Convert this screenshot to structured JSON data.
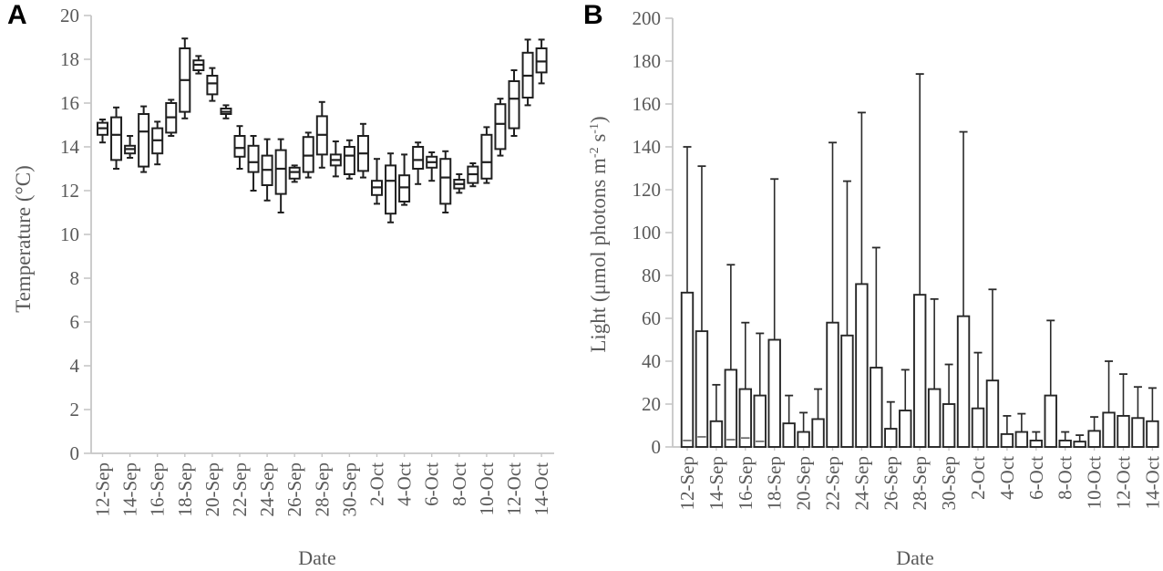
{
  "figure": {
    "panel_a_letter": "A",
    "panel_b_letter": "B"
  },
  "colors": {
    "box_outline": "#1f1f1f",
    "bar_outline": "#262626",
    "bar_fill": "#ffffff",
    "error_bar": "#2a2a2a",
    "axis_line": "#c6c6c6",
    "tick_text": "#595959",
    "inner_mark": "#3c3c3c"
  },
  "chart_data": [
    {
      "type": "boxplot",
      "panel": "A",
      "xlabel": "Date",
      "ylabel": "Temperature (°C)",
      "ylim": [
        0,
        20
      ],
      "ytick_step": 2,
      "grid": false,
      "x_tick_labels": [
        "12-Sep",
        "14-Sep",
        "16-Sep",
        "18-Sep",
        "20-Sep",
        "22-Sep",
        "24-Sep",
        "26-Sep",
        "28-Sep",
        "30-Sep",
        "2-Oct",
        "4-Oct",
        "6-Oct",
        "8-Oct",
        "10-Oct",
        "12-Oct",
        "14-Oct"
      ],
      "note": "one box per day, 12-Sep through 14-Oct; values = [whisker_low, q1, median, q3, whisker_high] in °C",
      "boxes": [
        [
          14.2,
          14.55,
          14.85,
          15.1,
          15.25
        ],
        [
          13.0,
          13.4,
          14.55,
          15.35,
          15.8
        ],
        [
          13.5,
          13.7,
          13.9,
          14.05,
          14.5
        ],
        [
          12.85,
          13.1,
          14.7,
          15.5,
          15.85
        ],
        [
          13.2,
          13.7,
          14.3,
          14.85,
          15.15
        ],
        [
          14.5,
          14.65,
          15.35,
          16.0,
          16.15
        ],
        [
          15.3,
          15.6,
          17.05,
          18.5,
          18.95
        ],
        [
          17.35,
          17.5,
          17.75,
          17.95,
          18.15
        ],
        [
          16.1,
          16.4,
          16.9,
          17.25,
          17.6
        ],
        [
          15.3,
          15.5,
          15.6,
          15.75,
          15.9
        ],
        [
          13.0,
          13.55,
          13.95,
          14.5,
          14.95
        ],
        [
          12.0,
          12.85,
          13.3,
          14.05,
          14.5
        ],
        [
          11.55,
          12.25,
          12.95,
          13.6,
          14.35
        ],
        [
          11.0,
          11.85,
          13.0,
          13.85,
          14.35
        ],
        [
          12.4,
          12.55,
          12.85,
          13.05,
          13.15
        ],
        [
          12.6,
          12.85,
          13.6,
          14.45,
          14.65
        ],
        [
          13.05,
          13.65,
          14.55,
          15.4,
          16.05
        ],
        [
          12.65,
          13.15,
          13.4,
          13.65,
          14.25
        ],
        [
          12.55,
          12.75,
          13.6,
          14.0,
          14.3
        ],
        [
          12.6,
          12.9,
          13.7,
          14.5,
          15.05
        ],
        [
          11.4,
          11.8,
          12.15,
          12.45,
          13.45
        ],
        [
          10.55,
          10.95,
          12.45,
          13.15,
          13.7
        ],
        [
          11.35,
          11.5,
          12.15,
          12.7,
          13.65
        ],
        [
          12.3,
          13.0,
          13.4,
          14.0,
          14.2
        ],
        [
          12.45,
          13.05,
          13.3,
          13.55,
          13.75
        ],
        [
          11.0,
          11.4,
          12.6,
          13.45,
          13.8
        ],
        [
          11.9,
          12.1,
          12.3,
          12.5,
          12.75
        ],
        [
          12.2,
          12.35,
          12.75,
          13.1,
          13.25
        ],
        [
          12.35,
          12.55,
          13.3,
          14.55,
          14.9
        ],
        [
          13.6,
          13.9,
          15.05,
          15.95,
          16.2
        ],
        [
          14.5,
          14.85,
          16.2,
          17.0,
          17.5
        ],
        [
          15.9,
          16.25,
          17.25,
          18.3,
          18.9
        ],
        [
          16.9,
          17.4,
          17.9,
          18.5,
          18.9
        ]
      ]
    },
    {
      "type": "bar",
      "panel": "B",
      "xlabel": "Date",
      "ylabel_parts": [
        {
          "t": "Light (μmol photons m"
        },
        {
          "t": "-2",
          "sup": true
        },
        {
          "t": " s"
        },
        {
          "t": "-1",
          "sup": true
        },
        {
          "t": ")"
        }
      ],
      "ylim": [
        0,
        200
      ],
      "ytick_step": 20,
      "grid": false,
      "error_bars": "upper",
      "x_tick_labels": [
        "12-Sep",
        "14-Sep",
        "16-Sep",
        "18-Sep",
        "20-Sep",
        "22-Sep",
        "24-Sep",
        "26-Sep",
        "28-Sep",
        "30-Sep",
        "2-Oct",
        "4-Oct",
        "6-Oct",
        "8-Oct",
        "10-Oct",
        "12-Oct",
        "14-Oct"
      ],
      "note": "one bar per day, 12-Sep through 14-Oct; values in μmol photons m-2 s-1, error_top = top of upper error bar",
      "values": [
        72,
        54,
        12,
        36,
        27,
        24,
        50,
        11,
        7,
        13,
        58,
        52,
        76,
        37,
        8.5,
        17,
        71,
        27,
        20,
        61,
        18,
        31,
        6,
        7,
        3,
        24,
        3,
        2.5,
        7.5,
        16,
        14.5,
        13.5,
        12
      ],
      "error_top": [
        140,
        131,
        29,
        85,
        58,
        53,
        125,
        24,
        16,
        27,
        142,
        124,
        156,
        93,
        21,
        36,
        174,
        69,
        38.5,
        147,
        44,
        73.5,
        14.5,
        15.5,
        7,
        59,
        7,
        5.5,
        14,
        40,
        34,
        28,
        27.5
      ],
      "inner_marks": {
        "0": 3,
        "1": 4.7,
        "3": 3.4,
        "4": 4.2,
        "5": 2.6
      }
    }
  ]
}
